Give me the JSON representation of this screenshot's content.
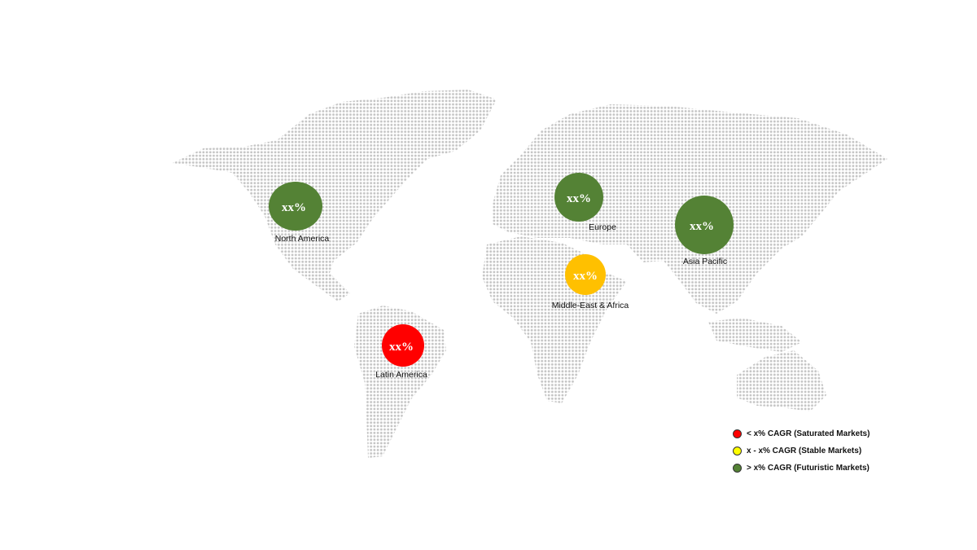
{
  "regions": [
    {
      "name": "North America",
      "value": "xx%",
      "color": "#548235"
    },
    {
      "name": "Europe",
      "value": "xx%",
      "color": "#548235"
    },
    {
      "name": "Asia Pacific",
      "value": "xx%",
      "color": "#548235"
    },
    {
      "name": "Middle-East & Africa",
      "value": "xx%",
      "color": "#FFC000"
    },
    {
      "name": "Latin America",
      "value": "xx%",
      "color": "#FF0000"
    }
  ],
  "legend": [
    {
      "label": "< x% CAGR (Saturated Markets)",
      "color": "#FF0000"
    },
    {
      "label": "x - x% CAGR (Stable Markets)",
      "color": "#FFFF00"
    },
    {
      "label": "> x% CAGR (Futuristic Markets)",
      "color": "#548235"
    }
  ],
  "map_dot_color": "#BFBFBF"
}
